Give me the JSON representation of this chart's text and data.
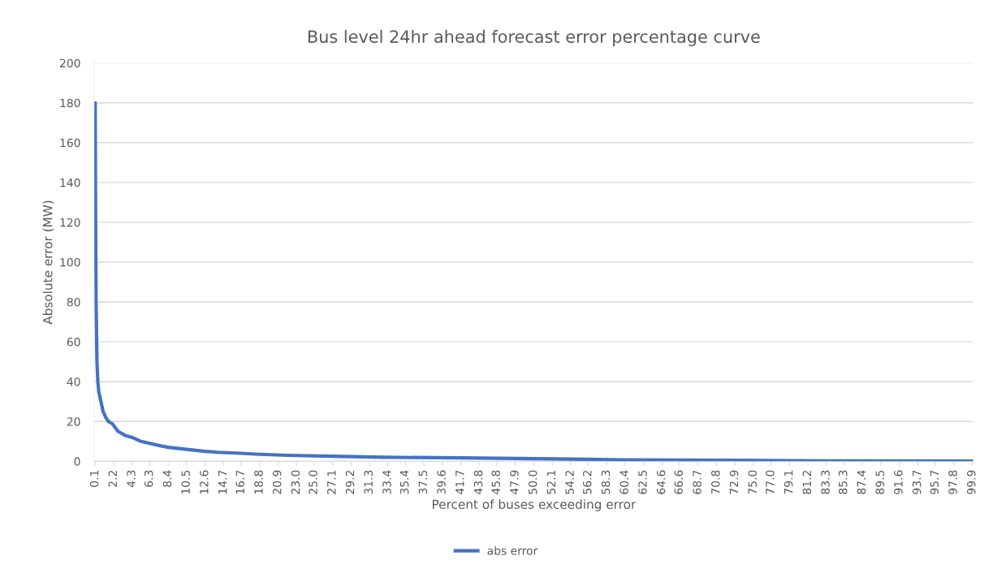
{
  "chart_data": {
    "type": "line",
    "title": "Bus level 24hr ahead forecast error percentage curve",
    "xlabel": "Percent of buses exceeding error",
    "ylabel": "Absolute error (MW)",
    "series": [
      {
        "name": "abs error",
        "color": "#4472c4",
        "x": [
          0.1,
          0.15,
          0.2,
          0.25,
          0.3,
          0.4,
          0.5,
          0.75,
          1.0,
          1.3,
          1.6,
          2.0,
          2.2,
          2.7,
          3.5,
          4.3,
          5.3,
          6.3,
          7.3,
          8.4,
          10.5,
          12.6,
          14.0,
          16.7,
          18.8,
          22.0,
          27.0,
          33.0,
          41.7,
          50.0,
          56.0,
          60.0,
          72.0,
          85.0,
          99.9
        ],
        "values": [
          180,
          120,
          80,
          65,
          50,
          40,
          35,
          30,
          25,
          22,
          20,
          19,
          18,
          15,
          13,
          12,
          10,
          9,
          8,
          7,
          6,
          5,
          4.5,
          4,
          3.5,
          3,
          2.5,
          2,
          1.7,
          1.3,
          1,
          0.7,
          0.5,
          0.2,
          0.1
        ]
      }
    ],
    "xlim": [
      0.0,
      100.0
    ],
    "xticks": [
      0.1,
      2.2,
      4.3,
      6.3,
      8.4,
      10.5,
      12.6,
      14.7,
      16.7,
      18.8,
      20.9,
      {
        "value": 23,
        "label": "23.0"
      },
      {
        "value": 25,
        "label": "25.0"
      },
      27.1,
      29.2,
      31.3,
      33.4,
      35.4,
      37.5,
      39.6,
      41.7,
      43.8,
      45.8,
      47.9,
      {
        "value": 50,
        "label": "50.0"
      },
      52.1,
      54.2,
      56.2,
      58.3,
      60.4,
      62.5,
      64.6,
      66.6,
      68.7,
      70.8,
      72.9,
      {
        "value": 75,
        "label": "75.0"
      },
      {
        "value": 77,
        "label": "77.0"
      },
      79.1,
      81.2,
      83.3,
      85.3,
      87.4,
      89.5,
      91.6,
      93.7,
      95.7,
      97.8,
      99.9
    ],
    "ylim": [
      0,
      200
    ],
    "yticks": [
      0,
      20,
      40,
      60,
      80,
      100,
      120,
      140,
      160,
      180,
      200
    ],
    "grid": "y",
    "legend": "bottom",
    "marker": "none",
    "line_style": "solid"
  }
}
